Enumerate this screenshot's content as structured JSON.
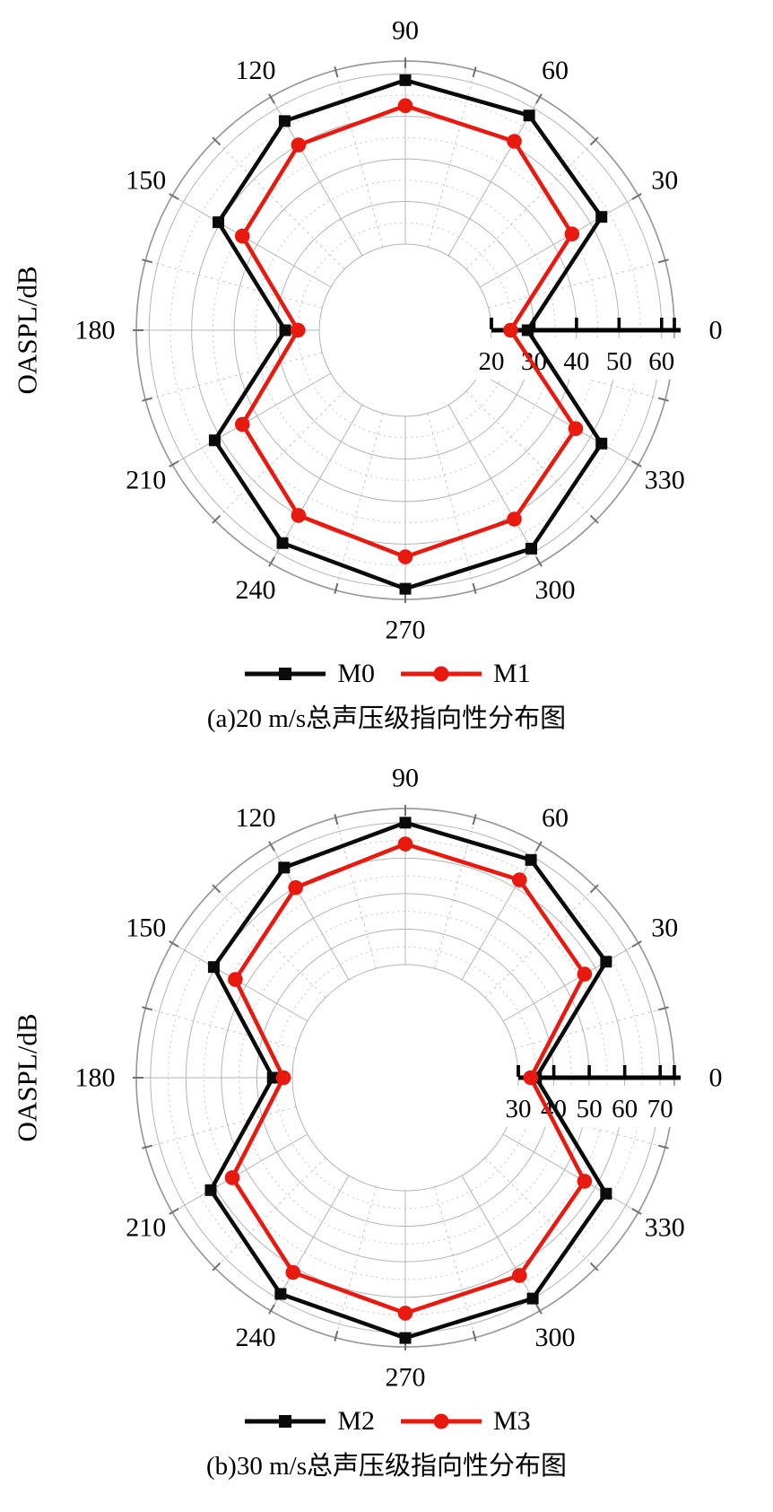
{
  "page": {
    "background": "#ffffff",
    "text_color": "#000000"
  },
  "chart_data": [
    {
      "type": "line",
      "polar": true,
      "title": "(a)20 m/s总声压级指向性分布图",
      "ylabel": "OASPL/dB",
      "angles_deg": [
        0,
        30,
        60,
        90,
        120,
        150,
        180,
        210,
        240,
        270,
        300,
        330
      ],
      "angle_tick_labels": [
        "0",
        "30",
        "60",
        "90",
        "120",
        "150",
        "180",
        "210",
        "240",
        "270",
        "300",
        "330"
      ],
      "radial_tick_labels": [
        "20",
        "30",
        "40",
        "50",
        "60"
      ],
      "radial_ticks": [
        20,
        30,
        40,
        50,
        60
      ],
      "radial_range": [
        20,
        63
      ],
      "grid_step": 5,
      "inner_radius_ratio": 0.32,
      "grid": true,
      "legend_position": "bottom",
      "series": [
        {
          "name": "M0",
          "marker": "square",
          "color": "#0a0a0a",
          "values": [
            28.5,
            53,
            58,
            58.5,
            56.5,
            50.5,
            28,
            51.5,
            57.5,
            60.5,
            59,
            53
          ]
        },
        {
          "name": "M1",
          "marker": "circle",
          "color": "#e8190f",
          "values": [
            24.5,
            45,
            51,
            52.5,
            50,
            44,
            25,
            44,
            50,
            53,
            51,
            46
          ]
        }
      ]
    },
    {
      "type": "line",
      "polar": true,
      "title": "(b)30 m/s总声压级指向性分布图",
      "ylabel": "OASPL/dB",
      "angles_deg": [
        0,
        30,
        60,
        90,
        120,
        150,
        180,
        210,
        240,
        270,
        300,
        330
      ],
      "angle_tick_labels": [
        "0",
        "30",
        "60",
        "90",
        "120",
        "150",
        "180",
        "210",
        "240",
        "270",
        "300",
        "330"
      ],
      "radial_tick_labels": [
        "30",
        "40",
        "50",
        "60",
        "70"
      ],
      "radial_ticks": [
        30,
        40,
        50,
        60,
        70
      ],
      "radial_range": [
        30,
        74
      ],
      "grid_step": 5,
      "inner_radius_ratio": 0.42,
      "grid": true,
      "legend_position": "bottom",
      "series": [
        {
          "name": "M2",
          "marker": "square",
          "color": "#0a0a0a",
          "values": [
            35,
            63.5,
            69,
            70,
            66.5,
            60.5,
            35.5,
            61.5,
            68.5,
            71.5,
            70,
            63.5
          ]
        },
        {
          "name": "M3",
          "marker": "circle",
          "color": "#e8190f",
          "values": [
            33.5,
            56.5,
            62.5,
            64,
            60,
            53.5,
            32.5,
            54.5,
            61.5,
            64.5,
            62.5,
            56.5
          ]
        }
      ]
    }
  ],
  "style": {
    "grid_major_color": "#b4b4b4",
    "grid_minor_color": "#c6c6c6",
    "boundary_color": "#9a9a9a",
    "rim_tick_color": "#707070",
    "axis_color": "#000000"
  }
}
